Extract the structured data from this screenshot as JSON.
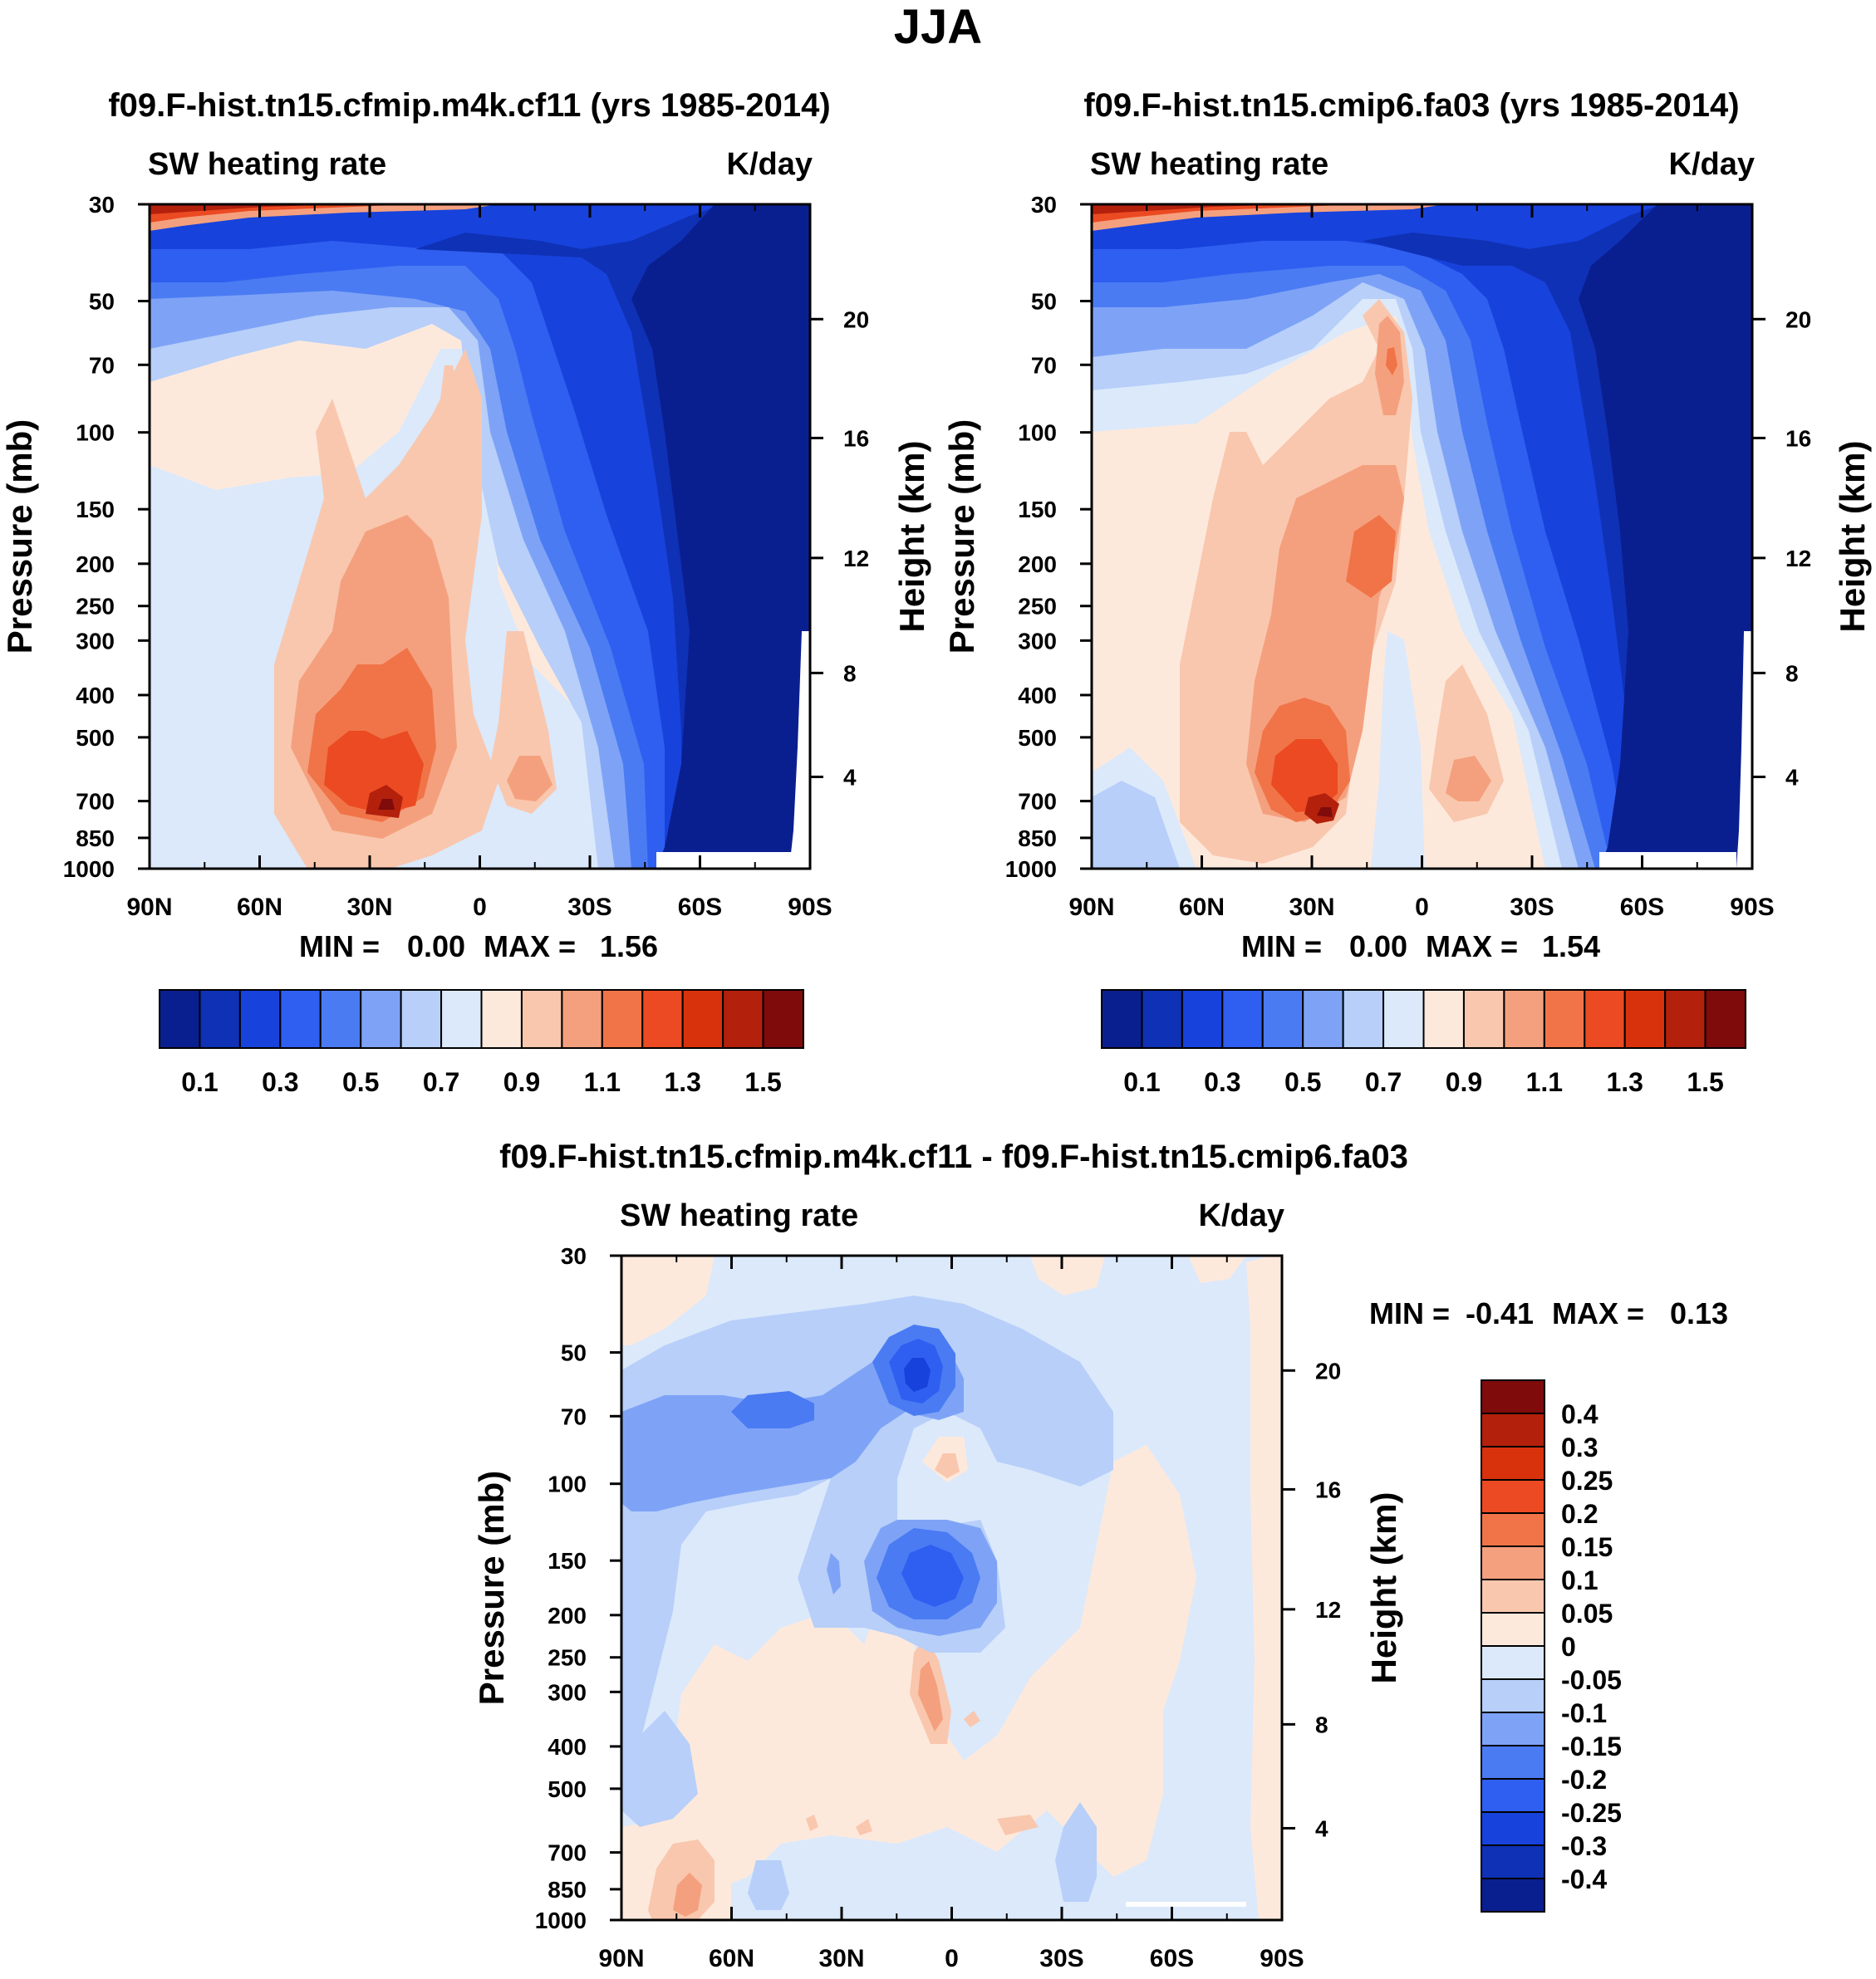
{
  "figure_title": "JJA",
  "colors": {
    "seq_palette": [
      "#0a1f8f",
      "#0f31b5",
      "#1742dc",
      "#2f5ff0",
      "#4a7bf3",
      "#7ea3f6",
      "#b7cff9",
      "#dbe9fb",
      "#fde9dc",
      "#f9c7ae",
      "#f4a07e",
      "#f07448",
      "#eb4a22",
      "#d8320d",
      "#b3200c",
      "#7f0b0b"
    ],
    "diff_palette": [
      "#0a1f8f",
      "#0f31b5",
      "#1742dc",
      "#2f5ff0",
      "#4a7bf3",
      "#7ea3f6",
      "#b7cff9",
      "#dbe9fb",
      "#fde9dc",
      "#f9c7ae",
      "#f4a07e",
      "#f07448",
      "#eb4a22",
      "#d8320d",
      "#b3200c",
      "#7f0b0b"
    ]
  },
  "chart_data": [
    {
      "type": "heatmap",
      "id": "panel1",
      "title": "f09.F-hist.tn15.cfmip.m4k.cf11 (yrs 1985-2014)",
      "left_label": "SW heating rate",
      "right_label": "K/day",
      "ylabel": "Pressure (mb)",
      "y2label": "Height (km)",
      "x_ticks": [
        "90N",
        "60N",
        "30N",
        "0",
        "30S",
        "60S",
        "90S"
      ],
      "xlim": [
        90,
        -90
      ],
      "y_ticks": [
        30,
        50,
        70,
        100,
        150,
        200,
        250,
        300,
        400,
        500,
        700,
        850,
        1000
      ],
      "ylim": [
        30,
        1000
      ],
      "y2_ticks": [
        20,
        16,
        12,
        8,
        4
      ],
      "stats": {
        "min_label": "MIN =",
        "min": "0.00",
        "max_label": "MAX =",
        "max": "1.56"
      },
      "colorbar": {
        "orientation": "horizontal",
        "labels": [
          "0.1",
          "0.3",
          "0.5",
          "0.7",
          "0.9",
          "1.1",
          "1.3",
          "1.5"
        ]
      }
    },
    {
      "type": "heatmap",
      "id": "panel2",
      "title": "f09.F-hist.tn15.cmip6.fa03 (yrs 1985-2014)",
      "left_label": "SW heating rate",
      "right_label": "K/day",
      "ylabel": "Pressure (mb)",
      "y2label": "Height (km)",
      "x_ticks": [
        "90N",
        "60N",
        "30N",
        "0",
        "30S",
        "60S",
        "90S"
      ],
      "xlim": [
        90,
        -90
      ],
      "y_ticks": [
        30,
        50,
        70,
        100,
        150,
        200,
        250,
        300,
        400,
        500,
        700,
        850,
        1000
      ],
      "ylim": [
        30,
        1000
      ],
      "y2_ticks": [
        20,
        16,
        12,
        8,
        4
      ],
      "stats": {
        "min_label": "MIN =",
        "min": "0.00",
        "max_label": "MAX =",
        "max": "1.54"
      },
      "colorbar": {
        "orientation": "horizontal",
        "labels": [
          "0.1",
          "0.3",
          "0.5",
          "0.7",
          "0.9",
          "1.1",
          "1.3",
          "1.5"
        ]
      }
    },
    {
      "type": "heatmap",
      "id": "panel3",
      "title": "f09.F-hist.tn15.cfmip.m4k.cf11 - f09.F-hist.tn15.cmip6.fa03",
      "left_label": "SW heating rate",
      "right_label": "K/day",
      "ylabel": "Pressure (mb)",
      "y2label": "Height (km)",
      "x_ticks": [
        "90N",
        "60N",
        "30N",
        "0",
        "30S",
        "60S",
        "90S"
      ],
      "xlim": [
        90,
        -90
      ],
      "y_ticks": [
        30,
        50,
        70,
        100,
        150,
        200,
        250,
        300,
        400,
        500,
        700,
        850,
        1000
      ],
      "ylim": [
        30,
        1000
      ],
      "y2_ticks": [
        20,
        16,
        12,
        8,
        4
      ],
      "stats": {
        "min_label": "MIN =",
        "min": "-0.41",
        "max_label": "MAX =",
        "max": "0.13"
      },
      "colorbar": {
        "orientation": "vertical",
        "labels": [
          "0.4",
          "0.3",
          "0.25",
          "0.2",
          "0.15",
          "0.1",
          "0.05",
          "0",
          "-0.05",
          "-0.1",
          "-0.15",
          "-0.2",
          "-0.25",
          "-0.3",
          "-0.4"
        ]
      }
    }
  ]
}
